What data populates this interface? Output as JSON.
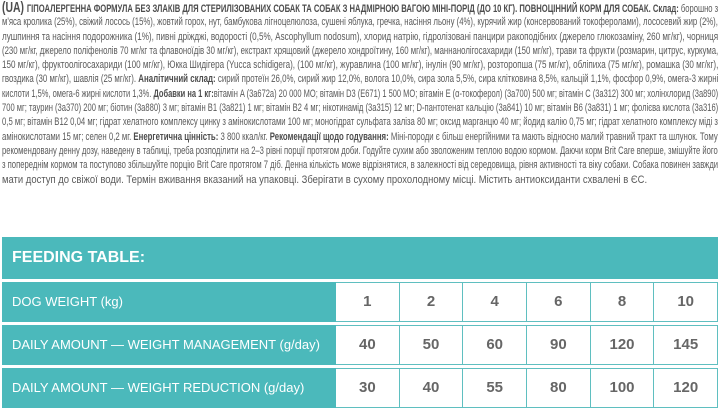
{
  "colors": {
    "accent": "#4bb9bb",
    "text": "#5a5a5a"
  },
  "label_text": [
    [
      {
        "t": "(UA) ",
        "b": "big"
      },
      {
        "t": "ГІПОАЛЕРГЕННА ФОРМУЛА БЕЗ ЗЛАКІВ ДЛЯ СТЕРИЛІЗОВАНИХ СОБАК ТА СОБАК З НАДМІРНОЮ ВАГОЮ МІНІ-ПОРІД (ДО 10 КГ). ПОВНОЦІННИЙ КОРМ ДЛЯ СОБАК. Склад:",
        "b": "bold"
      },
      {
        "t": " борошно з",
        "b": ""
      }
    ],
    [
      {
        "t": "м'яса кролика (25%), свіжий лосось (15%), жовтий горох, нут, бамбукова лігноцелюлоза, сушені яблука, гречка, насіння льону (4%), курячий жир (консервований токоферолами), лососевий жир (2%),",
        "b": ""
      }
    ],
    [
      {
        "t": "лушпиння та насіння подорожника (1%), пивні дріжджі, водорості (0,5%, Ascophyllum nodosum), хлорид натрію, гідролізовані панцири ракоподібних (джерело глюкозаміну, 260 мг/кг), чорниця",
        "b": ""
      }
    ],
    [
      {
        "t": "(230 мг/кг, джерело поліфенолів 70 мг/кг та флавоноїдів 30 мг/кг), екстракт хрящовий (джерело хондроїтину, 160 мг/кг), маннанолігосахариди (150 мг/кг), трави та фрукти (розмарин, цитрус, куркума,",
        "b": ""
      }
    ],
    [
      {
        "t": "150 мг/кг), фруктоолігосахариди (100 мг/кг), Юкка Шидігера (Yucca schidigera), (100 мг/кг), журавлина (100 мг/кг), інулін (90 мг/кг), розторопша (75 мг/кг), обліпиха (75 мг/кг), ромашка (30 мг/кг),",
        "b": ""
      }
    ],
    [
      {
        "t": "гвоздика (30 мг/кг), шавлія (25 мг/кг). ",
        "b": ""
      },
      {
        "t": "Аналітичний склад:",
        "b": "bold"
      },
      {
        "t": " сирий протеїн 26,0%, сирий жир 12,0%, волога 10,0%, сира зола 5,5%, сира клітковина 8,5%, кальцій 1,1%, фосфор 0,9%, омега-3 жирні",
        "b": ""
      }
    ],
    [
      {
        "t": "кислоти 1,5%, омега-6 жирні кислоти 1,3%. ",
        "b": ""
      },
      {
        "t": "Добавки на 1 кг:",
        "b": "bold"
      },
      {
        "t": "вітамін A (3a672a) 20 000 МО; вітамін D3 (E671) 1 500 МО; вітамін E (α-токоферол) (3a700) 500 мг; вітамін C (3a312) 300 мг; холінхлорид (3a890)",
        "b": ""
      }
    ],
    [
      {
        "t": "700 мг; таурин (3a370) 200 мг; біотин (3a880) 3 мг; вітамін B1 (3a821) 1 мг; вітамін B2 4 мг; нікотинамід (3a315) 12 мг; D-пантотенат кальцію (3a841) 10 мг; вітамін B6 (3a831) 1 мг; фолієва кислота (3a316)",
        "b": ""
      }
    ],
    [
      {
        "t": "0,5 мг; вітамін B12 0,04 мг; гідрат хелатного комплексу цинку з амінокислотами 100 мг; моногідрат сульфата заліза 80 мг; оксид марганцю 40 мг; йодид калію 0,75 мг; гідрат хелатного комплексу міді з",
        "b": ""
      }
    ],
    [
      {
        "t": "амінокислотами 15 мг; селен 0,2 мг. ",
        "b": ""
      },
      {
        "t": "Енергетична цінність:",
        "b": "bold"
      },
      {
        "t": " 3 800 ккал/кг. ",
        "b": ""
      },
      {
        "t": "Рекомендації щодо годування:",
        "b": "bold"
      },
      {
        "t": " Міні-породи є більш енергійними та мають відносно малий травний тракт та шлунок. Тому",
        "b": ""
      }
    ],
    [
      {
        "t": "рекомендовану денну дозу, наведену в таблиці, треба розподілити на 2–3 рівні порції протягом доби. Годуйте сухим або зволоженим теплою водою кормом. Даючи корм Brit Care вперше, змішуйте його",
        "b": ""
      }
    ],
    [
      {
        "t": "з попереднім кормом та поступово збільшуйте порцію Brit Care протягом 7 діб. Денна кількість може відрізнятися, в залежності від середовища, рівня активності та віку собаки. Собака повинен завжди",
        "b": ""
      }
    ],
    [
      {
        "t": "мати доступ до свіжої води. Термін вживання вказаний на упаковці. Зберігати в сухому прохолодному місці. Містить антиоксиданти схвалені в ЄС.",
        "b": ""
      }
    ]
  ],
  "feeding_table": {
    "title": "FEEDING TABLE:",
    "rows": [
      {
        "label": "DOG WEIGHT (kg)",
        "values": [
          "1",
          "2",
          "4",
          "6",
          "8",
          "10"
        ]
      },
      {
        "label": "DAILY AMOUNT — WEIGHT MANAGEMENT (g/day)",
        "values": [
          "40",
          "50",
          "60",
          "90",
          "120",
          "145"
        ]
      },
      {
        "label": "DAILY AMOUNT — WEIGHT REDUCTION (g/day)",
        "values": [
          "30",
          "40",
          "55",
          "80",
          "100",
          "120"
        ]
      }
    ]
  }
}
